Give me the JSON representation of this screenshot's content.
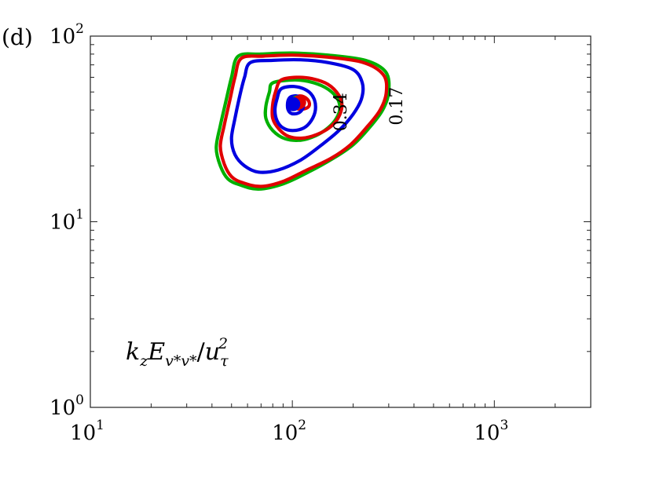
{
  "panel_label": "(d)",
  "chart_data": {
    "type": "contour",
    "title": "",
    "xlabel": "",
    "ylabel": "",
    "xscale": "log",
    "yscale": "log",
    "xlim": [
      10,
      3000
    ],
    "ylim": [
      1,
      100
    ],
    "grid": false,
    "x_ticks": [
      {
        "value": 10,
        "base": "10",
        "exp": "1"
      },
      {
        "value": 100,
        "base": "10",
        "exp": "2"
      },
      {
        "value": 1000,
        "base": "10",
        "exp": "3"
      }
    ],
    "y_ticks": [
      {
        "value": 1,
        "base": "10",
        "exp": "0"
      },
      {
        "value": 10,
        "base": "10",
        "exp": "1"
      },
      {
        "value": 100,
        "base": "10",
        "exp": "2"
      }
    ],
    "annotation": {
      "prefix": "k",
      "prefix_sub": "z",
      "body": "E",
      "body_sub": "v*v*",
      "slash": "/",
      "den": "u",
      "den_sub": "τ",
      "den_sup": "2"
    },
    "contour_labels": [
      {
        "text": "0.34",
        "x": 185,
        "y": 39
      },
      {
        "text": "0.17",
        "x": 350,
        "y": 42
      }
    ],
    "series": [
      {
        "color": "#00b000",
        "peak": {
          "x": 106,
          "y": 44
        },
        "contours": [
          {
            "level": 0.17,
            "points": [
              [
                54,
                78
              ],
              [
                70,
                80
              ],
              [
                100,
                81
              ],
              [
                150,
                79
              ],
              [
                230,
                74
              ],
              [
                290,
                64
              ],
              [
                300,
                50
              ],
              [
                280,
                40
              ],
              [
                240,
                32
              ],
              [
                200,
                26
              ],
              [
                160,
                22
              ],
              [
                120,
                18.5
              ],
              [
                90,
                16
              ],
              [
                68,
                15
              ],
              [
                55,
                15.8
              ],
              [
                48,
                17
              ],
              [
                44,
                20
              ],
              [
                42,
                25
              ],
              [
                44,
                33
              ],
              [
                47,
                45
              ],
              [
                50,
                60
              ],
              [
                54,
                78
              ]
            ]
          },
          {
            "level": 0.34,
            "points": [
              [
                80,
                56
              ],
              [
                100,
                58
              ],
              [
                120,
                57
              ],
              [
                145,
                53
              ],
              [
                165,
                47
              ],
              [
                172,
                41
              ],
              [
                165,
                36
              ],
              [
                150,
                32
              ],
              [
                130,
                29
              ],
              [
                110,
                27.5
              ],
              [
                92,
                28
              ],
              [
                80,
                31
              ],
              [
                74,
                36
              ],
              [
                74,
                42
              ],
              [
                77,
                50
              ],
              [
                80,
                56
              ]
            ]
          }
        ]
      },
      {
        "color": "#e00000",
        "peak": {
          "x": 108,
          "y": 44
        },
        "contours": [
          {
            "level": 0.17,
            "points": [
              [
                56,
                76
              ],
              [
                72,
                78
              ],
              [
                100,
                79
              ],
              [
                150,
                77
              ],
              [
                225,
                72
              ],
              [
                282,
                62
              ],
              [
                292,
                50
              ],
              [
                272,
                40
              ],
              [
                232,
                32
              ],
              [
                194,
                26
              ],
              [
                156,
                22
              ],
              [
                118,
                19
              ],
              [
                90,
                16.5
              ],
              [
                70,
                15.5
              ],
              [
                57,
                16.2
              ],
              [
                50,
                17.5
              ],
              [
                46,
                20.5
              ],
              [
                44,
                25.5
              ],
              [
                46,
                33
              ],
              [
                49,
                45
              ],
              [
                52,
                60
              ],
              [
                56,
                76
              ]
            ]
          },
          {
            "level": 0.34,
            "points": [
              [
                88,
                58
              ],
              [
                105,
                60
              ],
              [
                125,
                59
              ],
              [
                150,
                55
              ],
              [
                170,
                48
              ],
              [
                176,
                42
              ],
              [
                168,
                36
              ],
              [
                152,
                32
              ],
              [
                132,
                29.5
              ],
              [
                112,
                28.2
              ],
              [
                96,
                28.8
              ],
              [
                86,
                31.5
              ],
              [
                80,
                36
              ],
              [
                80,
                43
              ],
              [
                83,
                51
              ],
              [
                88,
                58
              ]
            ]
          },
          {
            "level": 0.5,
            "points": [
              [
                102,
                47
              ],
              [
                112,
                47.5
              ],
              [
                120,
                45
              ],
              [
                121,
                42
              ],
              [
                114,
                40.5
              ],
              [
                104,
                40.8
              ],
              [
                98,
                42.5
              ],
              [
                99,
                45.5
              ],
              [
                102,
                47
              ]
            ]
          }
        ]
      },
      {
        "color": "#0000e0",
        "peak": {
          "x": 101,
          "y": 43
        },
        "contours": [
          {
            "level": 0.17,
            "points": [
              [
                62,
                72
              ],
              [
                80,
                74
              ],
              [
                110,
                74.5
              ],
              [
                150,
                72
              ],
              [
                200,
                66
              ],
              [
                222,
                56
              ],
              [
                220,
                46
              ],
              [
                200,
                38
              ],
              [
                170,
                31
              ],
              [
                140,
                26
              ],
              [
                110,
                21.5
              ],
              [
                85,
                19
              ],
              [
                68,
                18.5
              ],
              [
                58,
                20
              ],
              [
                52,
                23
              ],
              [
                50,
                28
              ],
              [
                52,
                36
              ],
              [
                55,
                48
              ],
              [
                58,
                60
              ],
              [
                62,
                72
              ]
            ]
          },
          {
            "level": 0.34,
            "points": [
              [
                88,
                52
              ],
              [
                102,
                53.5
              ],
              [
                118,
                51
              ],
              [
                128,
                46
              ],
              [
                130,
                40
              ],
              [
                124,
                35
              ],
              [
                114,
                32
              ],
              [
                100,
                31
              ],
              [
                90,
                32
              ],
              [
                84,
                35
              ],
              [
                82,
                40
              ],
              [
                84,
                46
              ],
              [
                88,
                52
              ]
            ]
          },
          {
            "level": 0.5,
            "points": [
              [
                98,
                47
              ],
              [
                106,
                47.5
              ],
              [
                113,
                45
              ],
              [
                113,
                41
              ],
              [
                107,
                38.5
              ],
              [
                99,
                38.3
              ],
              [
                95,
                40.5
              ],
              [
                95,
                44.5
              ],
              [
                98,
                47
              ]
            ]
          }
        ]
      }
    ]
  }
}
